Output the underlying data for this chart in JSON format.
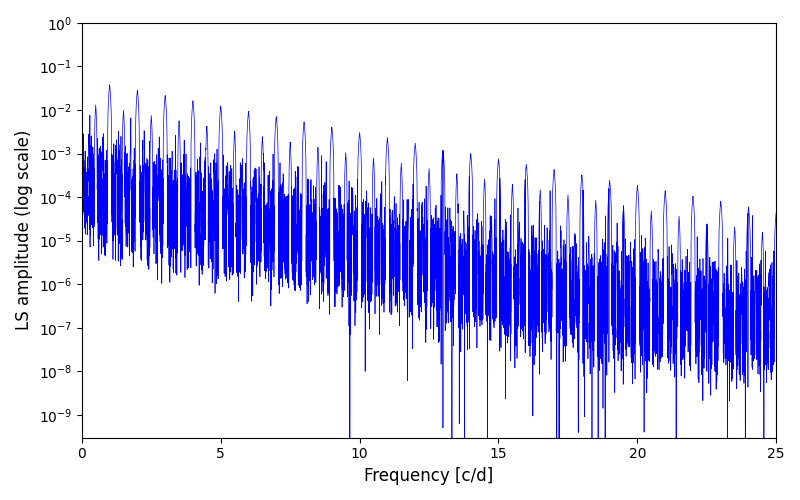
{
  "line_color": "#0000ff",
  "xlabel": "Frequency [c/d]",
  "ylabel": "LS amplitude (log scale)",
  "xlim": [
    0,
    25
  ],
  "ylim": [
    3e-10,
    1.0
  ],
  "figsize": [
    8.0,
    5.0
  ],
  "dpi": 100,
  "seed": 42
}
